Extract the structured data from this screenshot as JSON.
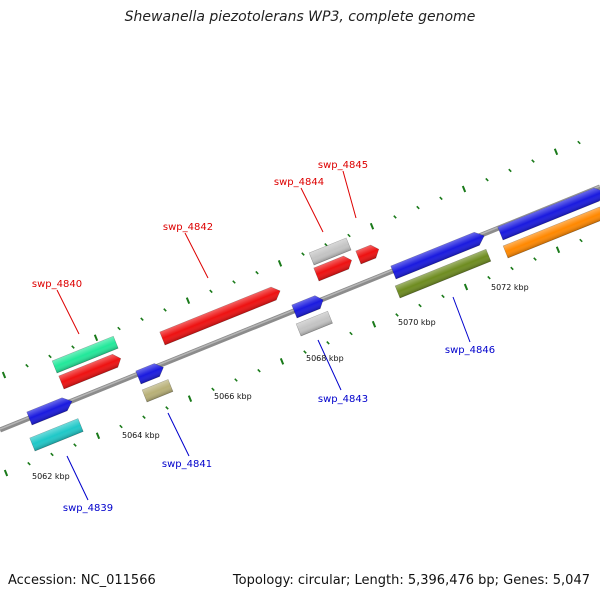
{
  "title": "Shewanella piezotolerans WP3, complete genome",
  "footer": {
    "accession": "Accession: NC_011566",
    "summary": "Topology: circular; Length: 5,396,476 bp; Genes: 5,047"
  },
  "colors": {
    "backbone": "#8c8c8c",
    "tick": "#1a7a1a",
    "forward_label": "#dd0000",
    "reverse_label": "#0000cc"
  },
  "kbp_marks": [
    {
      "label": "5062 kbp"
    },
    {
      "label": "5064 kbp"
    },
    {
      "label": "5066 kbp"
    },
    {
      "label": "5068 kbp"
    },
    {
      "label": "5070 kbp"
    },
    {
      "label": "5072 kbp"
    }
  ],
  "gene_labels": [
    {
      "name": "swp_4840",
      "strand": "forward"
    },
    {
      "name": "swp_4842",
      "strand": "forward"
    },
    {
      "name": "swp_4844",
      "strand": "forward"
    },
    {
      "name": "swp_4845",
      "strand": "forward"
    },
    {
      "name": "swp_4839",
      "strand": "reverse"
    },
    {
      "name": "swp_4841",
      "strand": "reverse"
    },
    {
      "name": "swp_4843",
      "strand": "reverse"
    },
    {
      "name": "swp_4846",
      "strand": "reverse"
    }
  ],
  "genes": [
    {
      "id": "g-blue-left",
      "color": "#1a1adf",
      "arrow": true
    },
    {
      "id": "g-cyan",
      "color": "#1fc8c8",
      "arrow": false
    },
    {
      "id": "g-teal-green",
      "color": "#22e89a",
      "arrow": false
    },
    {
      "id": "g-red-4840",
      "color": "#ee1111",
      "arrow": true
    },
    {
      "id": "g-blue-small",
      "color": "#1a1adf",
      "arrow": true
    },
    {
      "id": "g-khaki",
      "color": "#b8b077",
      "arrow": false
    },
    {
      "id": "g-red-4842",
      "color": "#ee1111",
      "arrow": true
    },
    {
      "id": "g-gray-a",
      "color": "#c4c4c4",
      "arrow": false
    },
    {
      "id": "g-red-4844",
      "color": "#ee1111",
      "arrow": true
    },
    {
      "id": "g-red-4845",
      "color": "#ee1111",
      "arrow": true
    },
    {
      "id": "g-blue-4843",
      "color": "#1a1adf",
      "arrow": true
    },
    {
      "id": "g-gray-b",
      "color": "#c4c4c4",
      "arrow": false
    },
    {
      "id": "g-blue-4846",
      "color": "#1a1adf",
      "arrow": true
    },
    {
      "id": "g-olive",
      "color": "#6e8c20",
      "arrow": false
    },
    {
      "id": "g-blue-right",
      "color": "#1a1adf",
      "arrow": true
    },
    {
      "id": "g-orange",
      "color": "#ff8800",
      "arrow": false
    }
  ]
}
